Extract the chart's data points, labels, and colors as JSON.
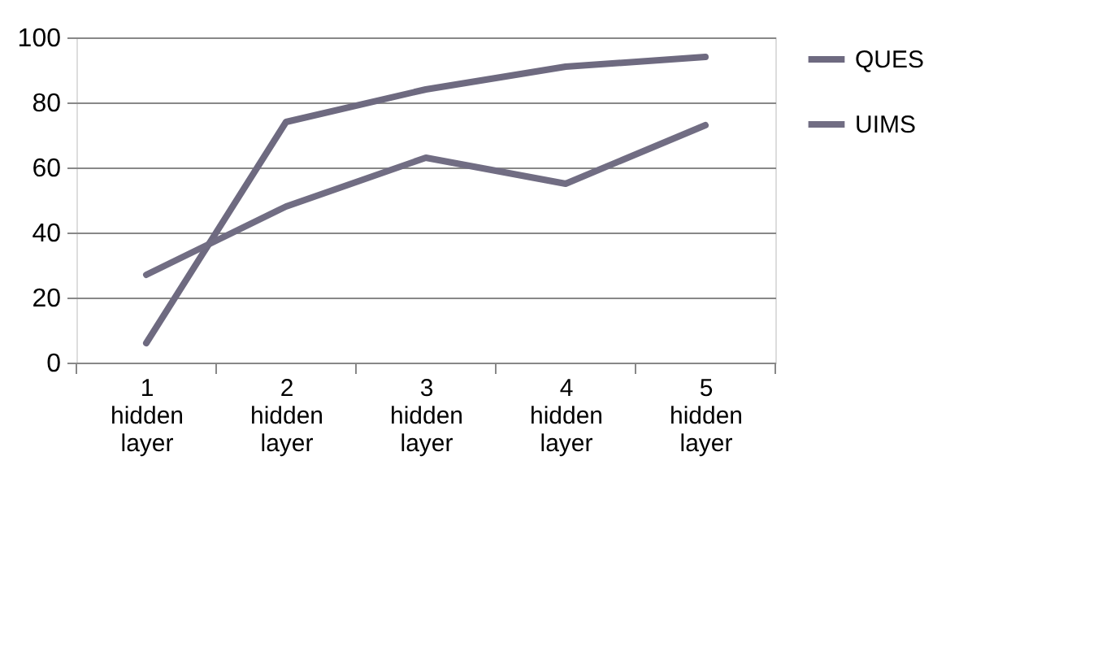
{
  "chart_data": {
    "type": "line",
    "categories": [
      "1 hidden layer",
      "2 hidden layer",
      "3 hidden layer",
      "4 hidden layer",
      "5 hidden layer"
    ],
    "series": [
      {
        "name": "QUES",
        "color": "#6e6a80",
        "values": [
          6,
          74,
          84,
          91,
          94
        ]
      },
      {
        "name": "UIMS",
        "color": "#716d83",
        "values": [
          27,
          48,
          63,
          55,
          73
        ]
      }
    ],
    "ylim": [
      0,
      100
    ],
    "yticks": [
      0,
      20,
      40,
      60,
      80,
      100
    ],
    "grid": "y",
    "legend": "right",
    "marker": "none",
    "line_style": "solid"
  }
}
